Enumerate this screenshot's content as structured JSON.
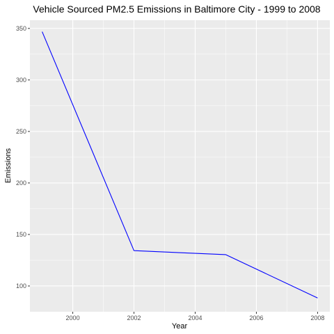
{
  "chart_data": {
    "type": "line",
    "title": "Vehicle Sourced PM2.5 Emissions in Baltimore City - 1999 to 2008",
    "xlabel": "Year",
    "ylabel": "Emissions",
    "x": [
      1999,
      2002,
      2005,
      2008
    ],
    "series": [
      {
        "values": [
          346.8,
          134.3,
          130.4,
          88.3
        ]
      }
    ],
    "xlim": [
      1998.6,
      2008.4
    ],
    "ylim": [
      75,
      358
    ],
    "xticks": [
      "2000",
      "2002",
      "2004",
      "2006",
      "2008"
    ],
    "yticks": [
      "100",
      "150",
      "200",
      "250",
      "300",
      "350"
    ],
    "grid": true,
    "legend": "none",
    "colors": {
      "line": "#0000ff",
      "panel_background": "#ebebeb",
      "grid_major": "#ffffff"
    }
  }
}
